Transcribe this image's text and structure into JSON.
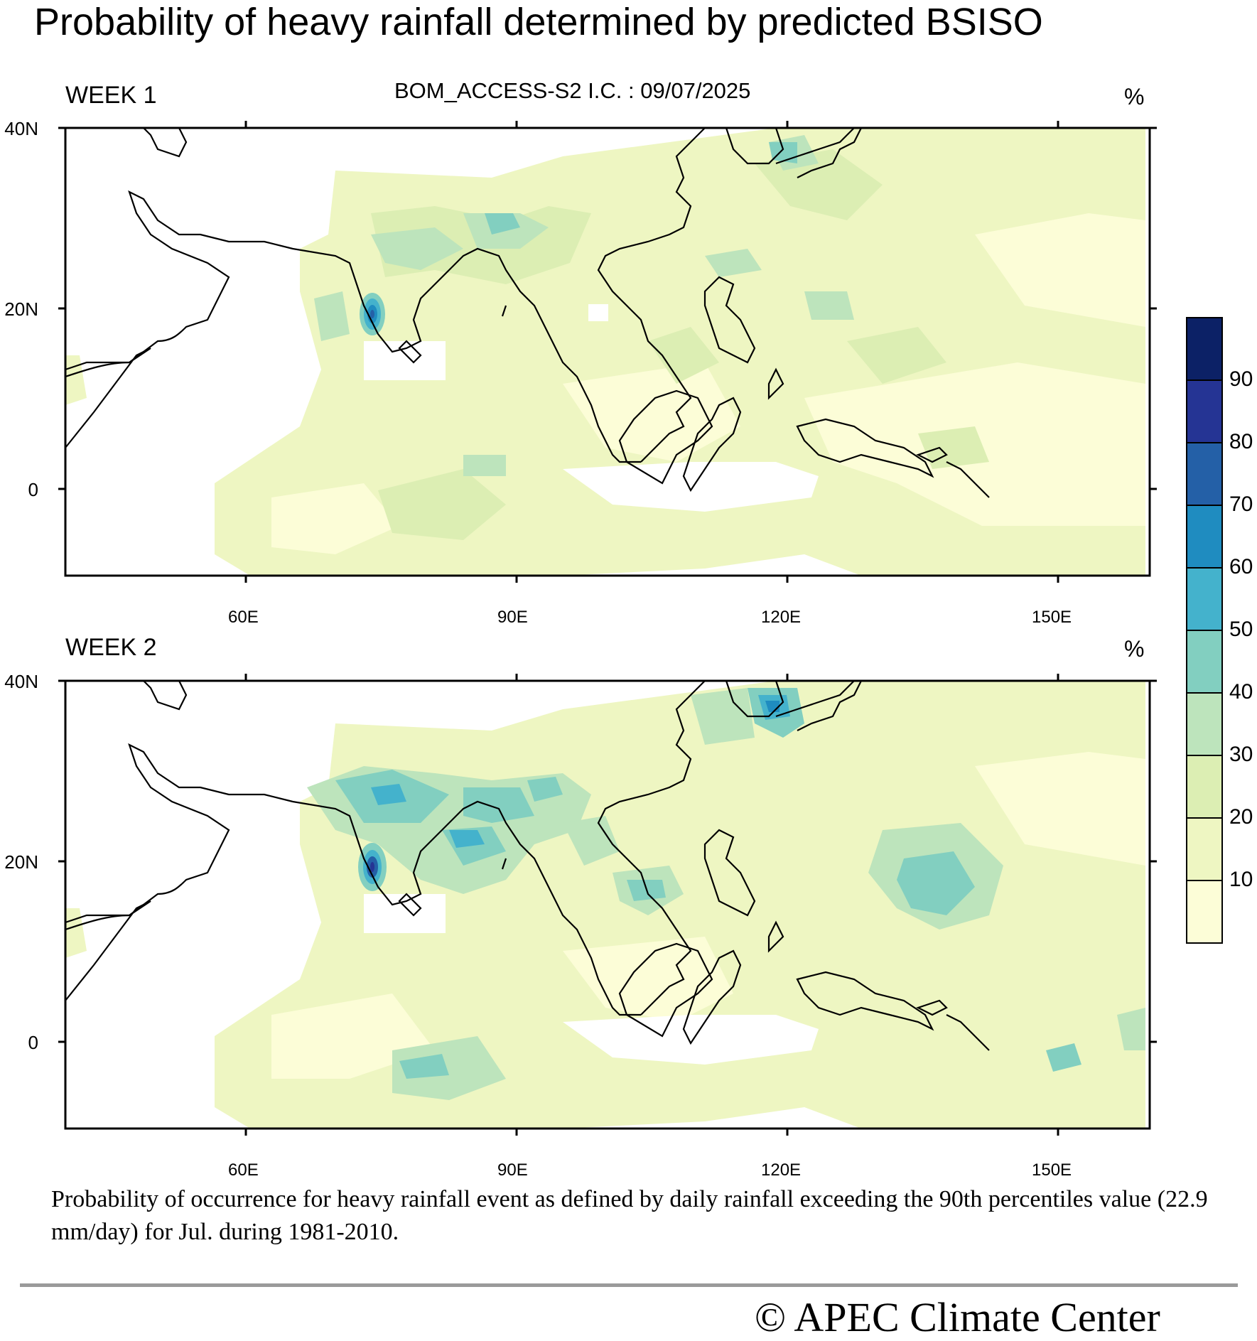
{
  "title": "Probability of heavy rainfall determined by predicted BSISO",
  "model_info": "BOM_ACCESS-S2  I.C. : 09/07/2025",
  "panels": [
    {
      "label": "WEEK 1",
      "unit": "%"
    },
    {
      "label": "WEEK 2",
      "unit": "%"
    }
  ],
  "axes": {
    "lat_ticks": [
      "40N",
      "20N",
      "0"
    ],
    "lon_ticks": [
      "60E",
      "90E",
      "120E",
      "150E"
    ]
  },
  "colorbar": {
    "levels": [
      "10",
      "20",
      "30",
      "40",
      "50",
      "60",
      "70",
      "80",
      "90"
    ],
    "colors": [
      "#fcfdd7",
      "#eef6c2",
      "#dceeb3",
      "#bde4bc",
      "#82cfc0",
      "#44b2cc",
      "#1f8cc0",
      "#2460a7",
      "#253494",
      "#0c2166"
    ]
  },
  "caption": "Probability of occurrence for heavy rainfall event as defined by daily rainfall exceeding the 90th percentiles value (22.9 mm/day) for Jul. during 1981-2010.",
  "copyright": "©  APEC Climate Center"
}
